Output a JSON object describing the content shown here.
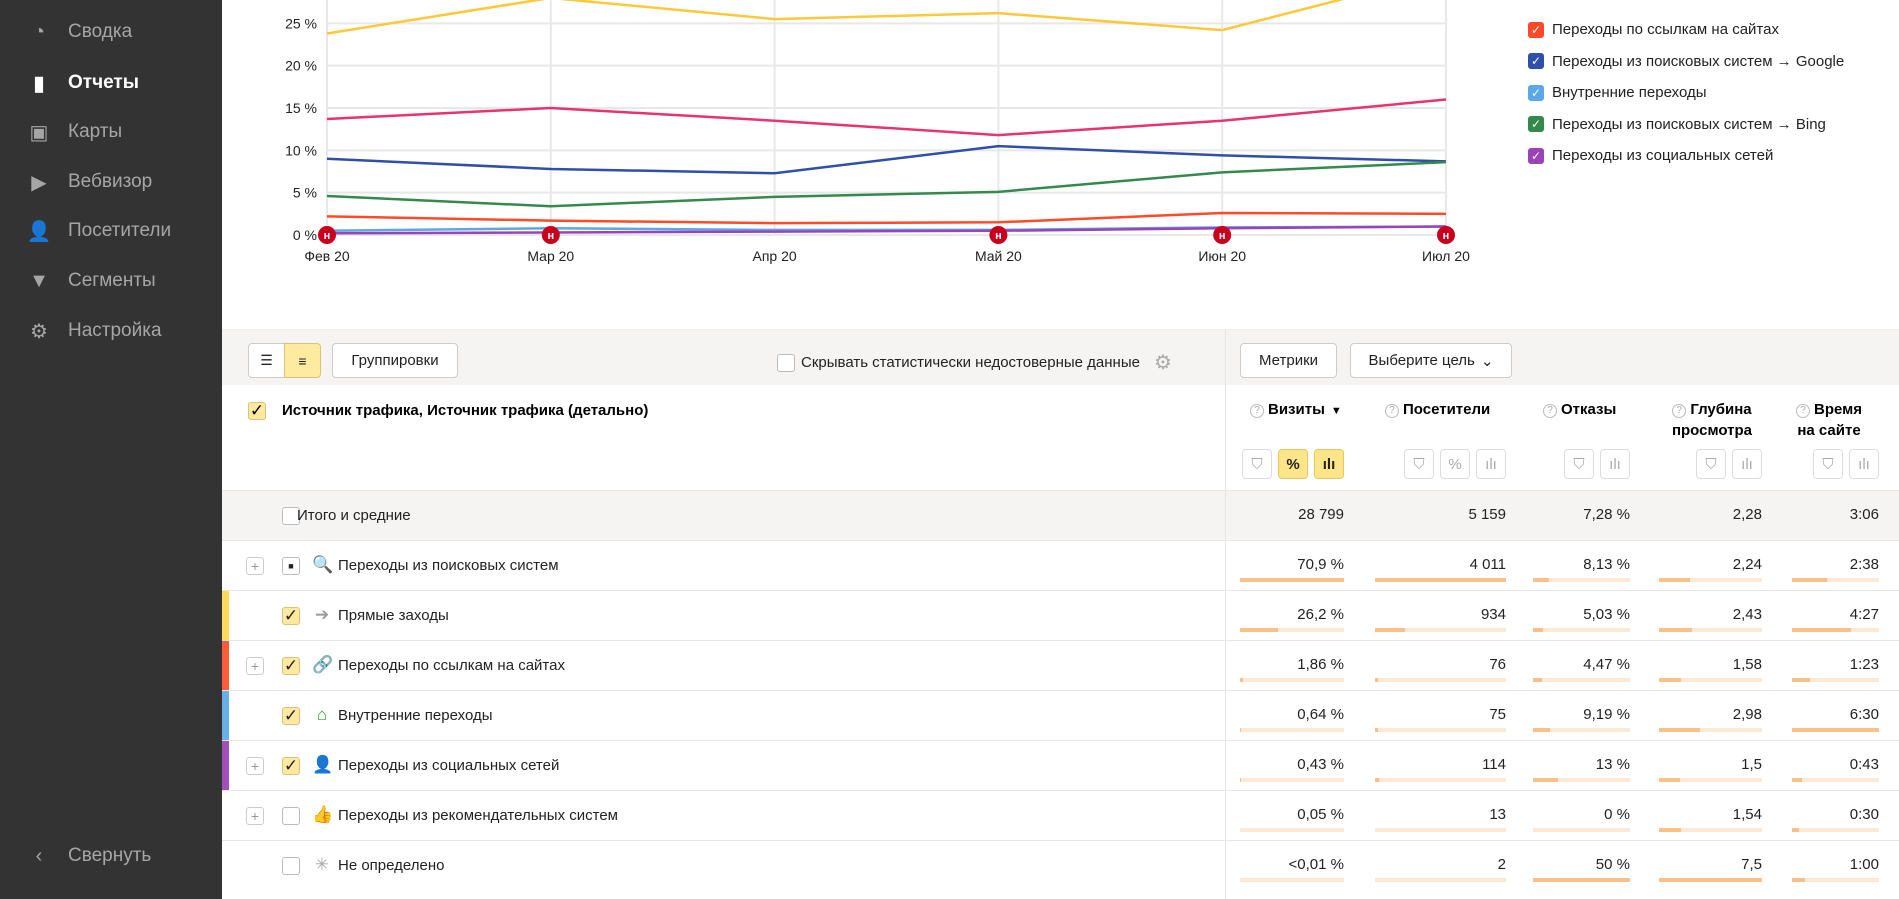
{
  "sidebar": {
    "items": [
      {
        "label": "Сводка",
        "icon": "gauge-icon",
        "active": false
      },
      {
        "label": "Отчеты",
        "icon": "bar-chart-icon",
        "active": true
      },
      {
        "label": "Карты",
        "icon": "map-layout-icon",
        "active": false
      },
      {
        "label": "Вебвизор",
        "icon": "play-icon",
        "active": false
      },
      {
        "label": "Посетители",
        "icon": "user-icon",
        "active": false
      },
      {
        "label": "Сегменты",
        "icon": "filter-icon",
        "active": false
      },
      {
        "label": "Настройка",
        "icon": "gear-icon",
        "active": false
      }
    ],
    "collapse": "Свернуть"
  },
  "chart_data": {
    "type": "line",
    "x": [
      "Фев 20",
      "Мар 20",
      "Апр 20",
      "Май 20",
      "Июн 20",
      "Июл 20"
    ],
    "yticks": [
      "0 %",
      "5 %",
      "10 %",
      "15 %",
      "20 %",
      "25 %"
    ],
    "ylim": [
      0,
      30
    ],
    "annotations_at": [
      "Фев 20",
      "Мар 20",
      "Май 20",
      "Июн 20",
      "Июл 20"
    ],
    "annotation_marker": "н",
    "series": [
      {
        "color": "#ffc83a",
        "values": [
          23.8,
          28,
          25.5,
          26.2,
          24.2,
          31
        ]
      },
      {
        "color": "#e8336e",
        "values": [
          13.7,
          15,
          13.5,
          11.8,
          13.5,
          16
        ]
      },
      {
        "name": "Переходы из поисковых систем → Google",
        "color": "#2f4fa8",
        "values": [
          9,
          7.8,
          7.3,
          10.5,
          9.4,
          8.7
        ]
      },
      {
        "name": "Переходы из поисковых систем → Bing",
        "color": "#348a4a",
        "values": [
          4.6,
          3.4,
          4.5,
          5.1,
          7.4,
          8.6
        ]
      },
      {
        "name": "Переходы по ссылкам на сайтах",
        "color": "#ff4a2a",
        "values": [
          2.2,
          1.7,
          1.4,
          1.5,
          2.6,
          2.5
        ]
      },
      {
        "name": "Внутренние переходы",
        "color": "#5aa8e8",
        "values": [
          0.5,
          0.8,
          0.6,
          0.6,
          0.9,
          1.0
        ]
      },
      {
        "name": "Переходы из социальных сетей",
        "color": "#9b44b8",
        "values": [
          0.2,
          0.3,
          0.4,
          0.5,
          0.8,
          1.0
        ]
      }
    ],
    "legend": [
      {
        "label": "Переходы по ссылкам на сайтах",
        "color": "#ff4a2a"
      },
      {
        "label": "Переходы из поисковых систем → Google",
        "color": "#2f4fa8"
      },
      {
        "label": "Внутренние переходы",
        "color": "#5aa8e8"
      },
      {
        "label": "Переходы из поисковых систем → Bing",
        "color": "#348a4a"
      },
      {
        "label": "Переходы из социальных сетей",
        "color": "#9b44b8"
      }
    ]
  },
  "toolbar": {
    "groupings": "Группировки",
    "hide_unreliable": "Скрывать статистически недостоверные данные",
    "metrics": "Метрики",
    "goal": "Выберите цель"
  },
  "table": {
    "dimension_header": "Источник трафика, Источник трафика (детально)",
    "columns": [
      {
        "label": "Визиты",
        "sort": "▼"
      },
      {
        "label": "Посетители"
      },
      {
        "label": "Отказы"
      },
      {
        "label": "Глубина\nпросмотра"
      },
      {
        "label": "Время\nна сайте"
      }
    ],
    "total": {
      "label": "Итого и средние",
      "values": [
        "28 799",
        "5 159",
        "7,28 %",
        "2,28",
        "3:06"
      ]
    },
    "rows": [
      {
        "label": "Переходы из поисковых систем",
        "icon": "search-icon",
        "expandable": true,
        "checked": "partial",
        "strip": "",
        "values": [
          "70,9 %",
          "4 011",
          "8,13 %",
          "2,24",
          "2:38"
        ],
        "bars": [
          1,
          1,
          0.16,
          0.3,
          0.4
        ]
      },
      {
        "label": "Прямые заходы",
        "icon": "arrow-right-icon",
        "expandable": false,
        "checked": "yes",
        "strip": "#ffd95a",
        "values": [
          "26,2 %",
          "934",
          "5,03 %",
          "2,43",
          "4:27"
        ],
        "bars": [
          0.37,
          0.23,
          0.1,
          0.32,
          0.68
        ]
      },
      {
        "label": "Переходы по ссылкам на сайтах",
        "icon": "link-icon",
        "expandable": true,
        "checked": "yes",
        "strip": "#ff5a3a",
        "values": [
          "1,86 %",
          "76",
          "4,47 %",
          "1,58",
          "1:23"
        ],
        "bars": [
          0.03,
          0.02,
          0.09,
          0.21,
          0.21
        ]
      },
      {
        "label": "Внутренние переходы",
        "icon": "home-icon",
        "expandable": false,
        "checked": "yes",
        "strip": "#6ab0e8",
        "values": [
          "0,64 %",
          "75",
          "9,19 %",
          "2,98",
          "6:30"
        ],
        "bars": [
          0.01,
          0.02,
          0.18,
          0.4,
          1
        ]
      },
      {
        "label": "Переходы из социальных сетей",
        "icon": "user-icon",
        "expandable": true,
        "checked": "yes",
        "strip": "#a050b8",
        "values": [
          "0,43 %",
          "114",
          "13 %",
          "1,5",
          "0:43"
        ],
        "bars": [
          0.01,
          0.03,
          0.26,
          0.2,
          0.11
        ]
      },
      {
        "label": "Переходы из рекомендательных систем",
        "icon": "thumbs-up-icon",
        "expandable": true,
        "checked": "no",
        "strip": "",
        "values": [
          "0,05 %",
          "13",
          "0 %",
          "1,54",
          "0:30"
        ],
        "bars": [
          0,
          0,
          0,
          0.21,
          0.08
        ]
      },
      {
        "label": "Не определено",
        "icon": "spinner-icon",
        "expandable": false,
        "checked": "no",
        "strip": "",
        "values": [
          "<0,01 %",
          "2",
          "50 %",
          "7,5",
          "1:00"
        ],
        "bars": [
          0,
          0,
          1,
          1,
          0.15
        ]
      }
    ]
  }
}
